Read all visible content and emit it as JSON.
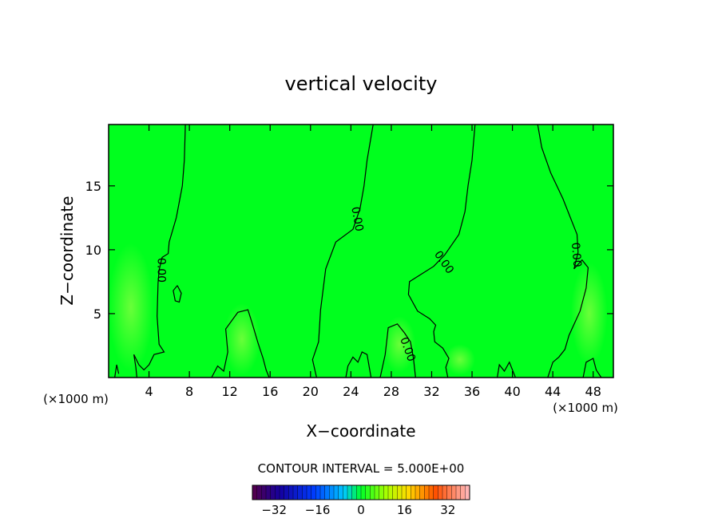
{
  "chart_data": {
    "type": "heatmap",
    "title": "vertical velocity",
    "xlabel": "X−coordinate",
    "ylabel": "Z−coordinate",
    "x_unit_left": "(×1000 m)",
    "x_unit_right": "(×1000 m)",
    "xlim": [
      0,
      50
    ],
    "ylim": [
      0,
      19.8
    ],
    "x_ticks": [
      4,
      8,
      12,
      16,
      20,
      24,
      28,
      32,
      36,
      40,
      44,
      48
    ],
    "x_tick_labels": [
      "4",
      "8",
      "12",
      "16",
      "20",
      "24",
      "28",
      "32",
      "36",
      "40",
      "44",
      "48"
    ],
    "y_ticks": [
      5,
      10,
      15
    ],
    "y_tick_labels": [
      "5",
      "10",
      "15"
    ],
    "field_color": "#00ff1e",
    "contour_labels": [
      {
        "text": "0.00",
        "x": 5.2,
        "z": 8.4,
        "angle": 90
      },
      {
        "text": "0.00",
        "x": 24.6,
        "z": 12.4,
        "angle": 80
      },
      {
        "text": "0.00",
        "x": 33.2,
        "z": 9.0,
        "angle": 55
      },
      {
        "text": "0.00",
        "x": 46.3,
        "z": 9.6,
        "angle": 85
      },
      {
        "text": "0.00",
        "x": 29.6,
        "z": 2.2,
        "angle": 70
      }
    ],
    "contour_lines": [
      [
        [
          7.6,
          19.8
        ],
        [
          7.5,
          17
        ],
        [
          7.3,
          15
        ],
        [
          6.7,
          12.5
        ],
        [
          6.0,
          10.6
        ],
        [
          5.9,
          9.7
        ],
        [
          5.3,
          9.4
        ],
        [
          5.0,
          8.4
        ],
        [
          4.9,
          7.4
        ],
        [
          4.8,
          4.8
        ],
        [
          5.0,
          2.6
        ],
        [
          5.5,
          2.0
        ],
        [
          4.5,
          1.8
        ],
        [
          4.0,
          1.0
        ],
        [
          3.5,
          0.6
        ],
        [
          3.0,
          1.0
        ],
        [
          2.5,
          1.8
        ],
        [
          2.7,
          0.8
        ],
        [
          2.8,
          0
        ]
      ],
      [
        [
          26.2,
          19.8
        ],
        [
          25.6,
          17
        ],
        [
          25.3,
          15
        ],
        [
          24.9,
          13.2
        ],
        [
          24.2,
          11.6
        ],
        [
          22.5,
          10.6
        ],
        [
          21.5,
          8.5
        ],
        [
          21.0,
          5.3
        ],
        [
          20.8,
          2.8
        ],
        [
          20.2,
          1.4
        ],
        [
          20.6,
          0
        ]
      ],
      [
        [
          36.3,
          19.8
        ],
        [
          36.0,
          17
        ],
        [
          35.6,
          15
        ],
        [
          35.3,
          13
        ],
        [
          34.7,
          11.2
        ],
        [
          33.3,
          9.6
        ],
        [
          32.2,
          8.7
        ],
        [
          30.8,
          8.0
        ],
        [
          29.8,
          7.5
        ],
        [
          29.7,
          6.5
        ],
        [
          30.6,
          5.2
        ],
        [
          31.8,
          4.6
        ],
        [
          32.4,
          4.1
        ],
        [
          32.2,
          3.6
        ],
        [
          32.3,
          2.8
        ],
        [
          33.1,
          2.3
        ],
        [
          33.7,
          1.5
        ],
        [
          33.4,
          0.8
        ],
        [
          33.6,
          0
        ]
      ],
      [
        [
          42.5,
          19.8
        ],
        [
          42.9,
          18
        ],
        [
          43.8,
          16
        ],
        [
          45.0,
          14
        ],
        [
          45.8,
          12.4
        ],
        [
          46.4,
          11.2
        ],
        [
          46.5,
          9.8
        ],
        [
          46.1,
          8.5
        ],
        [
          46.9,
          9.2
        ],
        [
          47.5,
          8.6
        ],
        [
          47.3,
          7
        ],
        [
          46.7,
          5.2
        ],
        [
          45.6,
          3.3
        ],
        [
          45.2,
          2.2
        ],
        [
          44.6,
          1.6
        ],
        [
          44.0,
          1.2
        ],
        [
          43.5,
          0
        ]
      ],
      [
        [
          6.8,
          7.2
        ],
        [
          7.2,
          6.6
        ],
        [
          7.0,
          5.9
        ],
        [
          6.6,
          6.0
        ],
        [
          6.4,
          6.8
        ],
        [
          6.8,
          7.2
        ]
      ],
      [
        [
          10.2,
          0
        ],
        [
          10.8,
          0.9
        ],
        [
          11.4,
          0.5
        ],
        [
          11.8,
          2.0
        ],
        [
          11.6,
          3.8
        ],
        [
          12.8,
          5.1
        ],
        [
          13.8,
          5.3
        ],
        [
          14.2,
          4.3
        ],
        [
          14.8,
          2.7
        ],
        [
          15.3,
          1.5
        ],
        [
          15.6,
          0.6
        ],
        [
          15.9,
          0
        ]
      ],
      [
        [
          26.9,
          0
        ],
        [
          27.4,
          1.8
        ],
        [
          27.7,
          3.9
        ],
        [
          28.6,
          4.2
        ],
        [
          29.3,
          3.5
        ],
        [
          29.9,
          2.8
        ],
        [
          30.2,
          1.5
        ],
        [
          30.4,
          0
        ]
      ],
      [
        [
          23.5,
          0
        ],
        [
          23.7,
          0.9
        ],
        [
          24.2,
          1.6
        ],
        [
          24.7,
          1.2
        ],
        [
          25.1,
          2.0
        ],
        [
          25.6,
          1.8
        ],
        [
          26.0,
          0
        ]
      ],
      [
        [
          0.6,
          0
        ],
        [
          0.8,
          1.0
        ],
        [
          1.0,
          0.3
        ]
      ],
      [
        [
          38.5,
          0
        ],
        [
          38.7,
          1.0
        ],
        [
          39.2,
          0.5
        ],
        [
          39.7,
          1.2
        ],
        [
          40.3,
          0
        ]
      ],
      [
        [
          47.0,
          0
        ],
        [
          47.3,
          1.2
        ],
        [
          48.0,
          1.5
        ],
        [
          48.3,
          0.6
        ],
        [
          48.8,
          0
        ]
      ]
    ],
    "light_patches": [
      {
        "x": 2.2,
        "z": 5.5,
        "rx": 2.2,
        "rz": 5.0
      },
      {
        "x": 13.2,
        "z": 3.0,
        "rx": 1.8,
        "rz": 2.8
      },
      {
        "x": 28.8,
        "z": 2.6,
        "rx": 1.6,
        "rz": 2.2
      },
      {
        "x": 47.6,
        "z": 5.0,
        "rx": 1.8,
        "rz": 4.0
      },
      {
        "x": 34.8,
        "z": 1.4,
        "rx": 1.5,
        "rz": 1.2
      }
    ],
    "colorbar": {
      "title": "CONTOUR INTERVAL = 5.000E+00",
      "min": -40,
      "max": 40,
      "ticks": [
        -32,
        -16,
        0,
        16,
        32
      ],
      "tick_labels": [
        "−32",
        "−16",
        "0",
        "16",
        "32"
      ]
    }
  }
}
